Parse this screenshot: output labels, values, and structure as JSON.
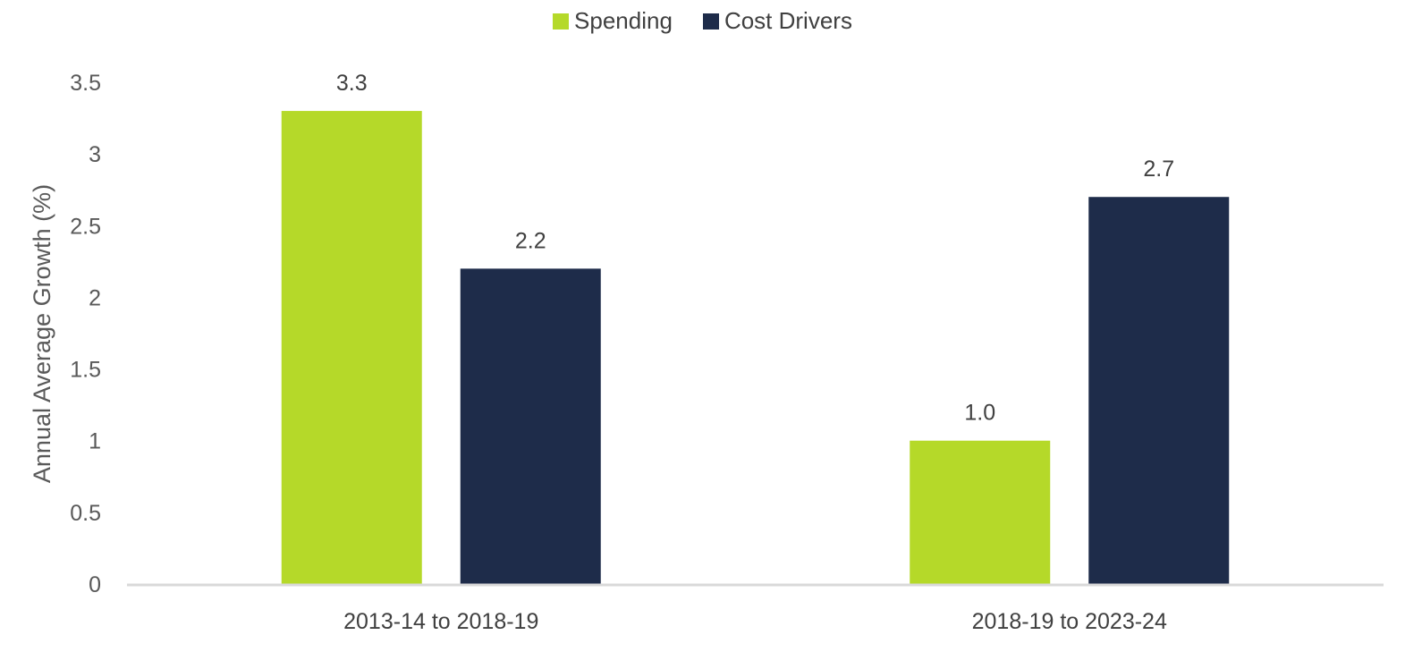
{
  "chart_data": {
    "type": "bar",
    "title": "",
    "xlabel": "",
    "ylabel": "Annual Average Growth (%)",
    "ylim": [
      0,
      3.5
    ],
    "yticks": [
      "0",
      "0.5",
      "1",
      "1.5",
      "2",
      "2.5",
      "3",
      "3.5"
    ],
    "ytick_values": [
      0,
      0.5,
      1,
      1.5,
      2,
      2.5,
      3,
      3.5
    ],
    "grid": false,
    "legend_position": "top-center",
    "categories": [
      "2013-14 to 2018-19",
      "2018-19 to 2023-24"
    ],
    "series": [
      {
        "name": "Spending",
        "color": "#b5d929",
        "values": [
          3.3,
          1.0
        ],
        "labels": [
          "3.3",
          "1.0"
        ]
      },
      {
        "name": "Cost Drivers",
        "color": "#1e2c4a",
        "values": [
          2.2,
          2.7
        ],
        "labels": [
          "2.2",
          "2.7"
        ]
      }
    ]
  },
  "colors": {
    "axis_line": "#d9d9d9",
    "text": "#404040"
  }
}
